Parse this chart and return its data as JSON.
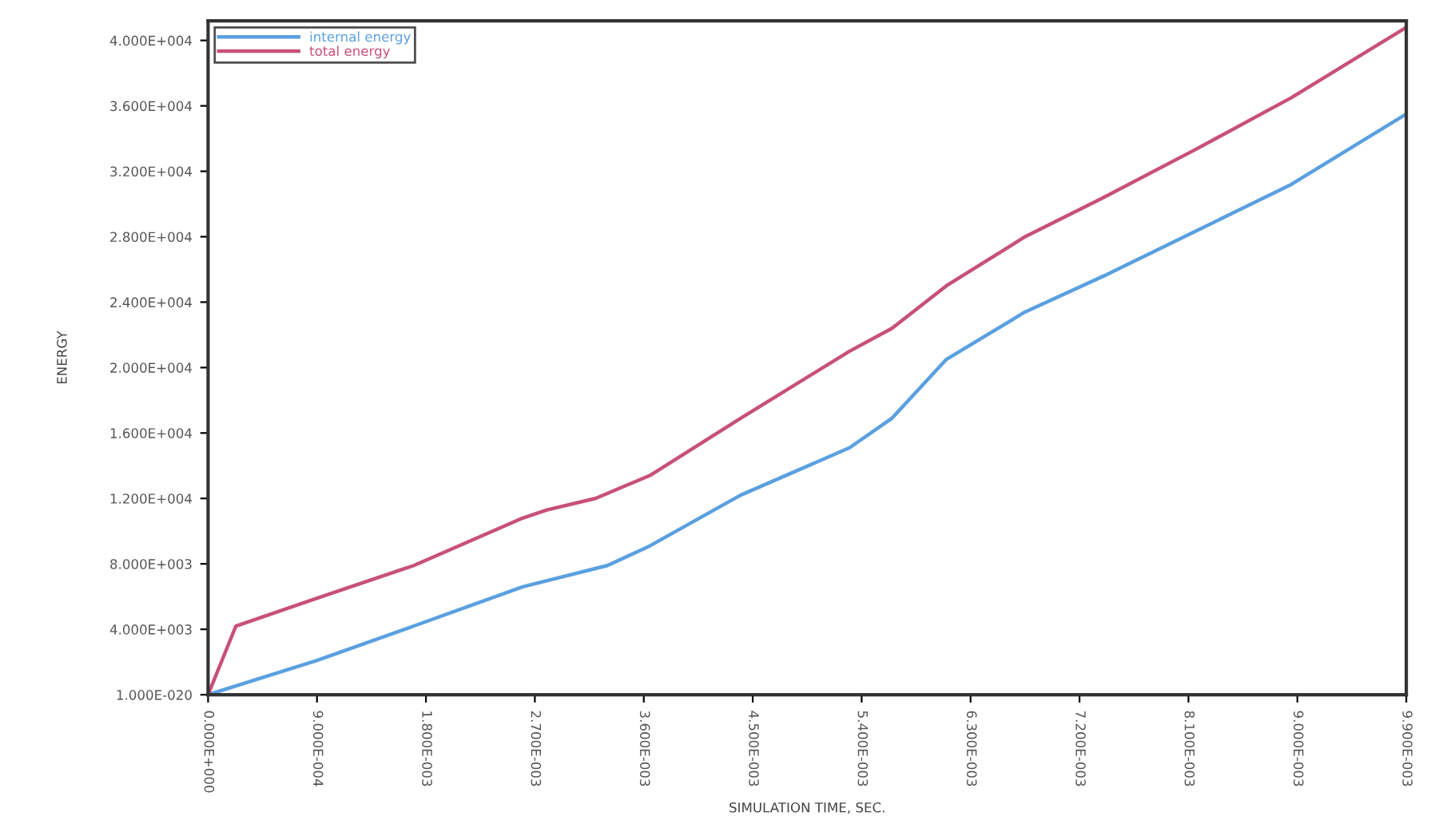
{
  "chart_data": {
    "type": "line",
    "xlabel": "SIMULATION TIME, SEC.",
    "ylabel": "ENERGY",
    "xlim": [
      0,
      0.0099
    ],
    "ylim": [
      0,
      41200
    ],
    "xticks": [
      {
        "value": 0,
        "label": "0.000E+000"
      },
      {
        "value": 0.0009,
        "label": "9.000E-004"
      },
      {
        "value": 0.0018,
        "label": "1.800E-003"
      },
      {
        "value": 0.0027,
        "label": "2.700E-003"
      },
      {
        "value": 0.0036,
        "label": "3.600E-003"
      },
      {
        "value": 0.0045,
        "label": "4.500E-003"
      },
      {
        "value": 0.0054,
        "label": "5.400E-003"
      },
      {
        "value": 0.0063,
        "label": "6.300E-003"
      },
      {
        "value": 0.0072,
        "label": "7.200E-003"
      },
      {
        "value": 0.0081,
        "label": "8.100E-003"
      },
      {
        "value": 0.009,
        "label": "9.000E-003"
      },
      {
        "value": 0.0099,
        "label": "9.900E-003"
      }
    ],
    "yticks": [
      {
        "value": 0,
        "label": "1.000E-020"
      },
      {
        "value": 4000,
        "label": "4.000E+003"
      },
      {
        "value": 8000,
        "label": "8.000E+003"
      },
      {
        "value": 12000,
        "label": "1.200E+004"
      },
      {
        "value": 16000,
        "label": "1.600E+004"
      },
      {
        "value": 20000,
        "label": "2.000E+004"
      },
      {
        "value": 24000,
        "label": "2.400E+004"
      },
      {
        "value": 28000,
        "label": "2.800E+004"
      },
      {
        "value": 32000,
        "label": "3.200E+004"
      },
      {
        "value": 36000,
        "label": "3.600E+004"
      },
      {
        "value": 40000,
        "label": "4.000E+004"
      }
    ],
    "grid": false,
    "legend": "top left",
    "series": [
      {
        "name": "internal energy",
        "color": "#5aa0e0",
        "x": [
          0,
          0.0009,
          0.0017,
          0.0026,
          0.0033,
          0.00365,
          0.0044,
          0.0053,
          0.00565,
          0.0061,
          0.00675,
          0.0074,
          0.00815,
          0.00895,
          0.0099
        ],
        "values": [
          0,
          2100,
          4200,
          6600,
          7900,
          9100,
          12200,
          15100,
          16900,
          20500,
          23400,
          25600,
          28300,
          31200,
          35500
        ]
      },
      {
        "name": "total energy",
        "color": "#c8507a",
        "x": [
          0,
          0.00023,
          0.00094,
          0.0017,
          0.0026,
          0.0028,
          0.0032,
          0.00365,
          0.0044,
          0.0053,
          0.00565,
          0.0061,
          0.00675,
          0.0074,
          0.00815,
          0.00895,
          0.0099
        ],
        "values": [
          0,
          4200,
          6000,
          7900,
          10800,
          11300,
          12000,
          13400,
          16900,
          21000,
          22400,
          25000,
          28000,
          30400,
          33300,
          36500,
          40800
        ]
      }
    ]
  }
}
